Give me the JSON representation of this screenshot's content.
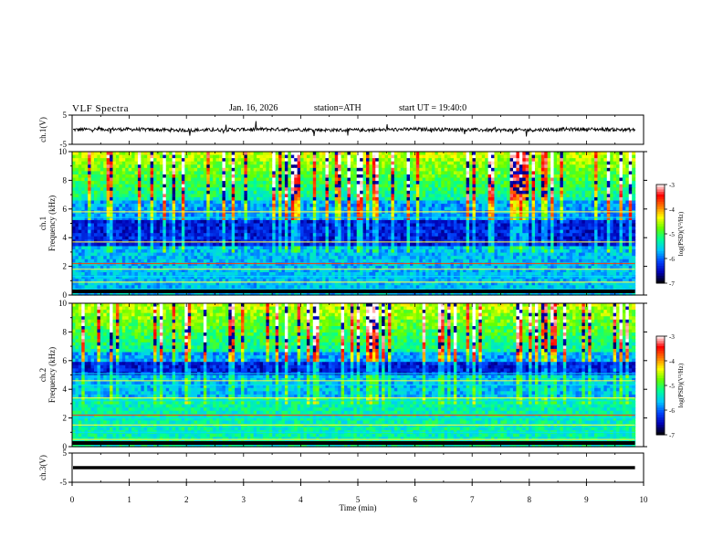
{
  "header": {
    "title": "VLF Spectra",
    "date": "Jan. 16, 2026",
    "station": "station=ATH",
    "start_ut": "start UT =  19:40:0"
  },
  "chart_data": [
    {
      "type": "line",
      "name": "ch1-waveform",
      "ylabel": "ch.1(V)",
      "ylim": [
        -5,
        5
      ],
      "yticks": [
        5,
        -5
      ],
      "xlim": [
        0,
        10
      ],
      "series": [
        {
          "name": "ch.1",
          "description": "noisy trace near 0 V with spikes",
          "baseline": 0,
          "noise_amp": 0.6,
          "spike_max": 2.5
        }
      ]
    },
    {
      "type": "heatmap",
      "name": "ch1-spectrogram",
      "ylabel": "ch.1",
      "ylabel2": "Frequency (kHz)",
      "xlim": [
        0,
        10
      ],
      "ylim": [
        0,
        10
      ],
      "yticks": [
        0,
        2,
        4,
        6,
        8,
        10
      ],
      "colorbar": {
        "label": "log(PSD)(V²/Hz)",
        "range": [
          -7,
          -3
        ],
        "ticks": [
          -3,
          -4,
          -5,
          -6,
          -7
        ]
      },
      "quiet_band_khz": [
        3.5,
        5.2
      ],
      "tone_lines_khz": [
        0.2,
        0.4,
        0.9,
        1.3,
        1.8,
        2.2,
        3.7,
        5.4,
        5.8
      ],
      "data_end_min": 9.85
    },
    {
      "type": "heatmap",
      "name": "ch2-spectrogram",
      "ylabel": "ch.2",
      "ylabel2": "Frequency (kHz)",
      "xlim": [
        0,
        10
      ],
      "ylim": [
        0,
        10
      ],
      "yticks": [
        0,
        2,
        4,
        6,
        8,
        10
      ],
      "colorbar": {
        "label": "log(PSD)(V²/Hz)",
        "range": [
          -7,
          -3
        ],
        "ticks": [
          -3,
          -4,
          -5,
          -6,
          -7
        ]
      },
      "quiet_band_khz": [
        5.0,
        6.0
      ],
      "tone_lines_khz": [
        0.5,
        1.0,
        1.5,
        2.0,
        2.2,
        3.2,
        3.4,
        4.3,
        4.6,
        5.1
      ],
      "data_end_min": 9.85
    },
    {
      "type": "line",
      "name": "ch3-waveform",
      "ylabel": "ch.3(V)",
      "ylim": [
        -5,
        5
      ],
      "yticks": [
        5,
        -5
      ],
      "xlim": [
        0,
        10
      ],
      "xlabel": "Time (min)",
      "xticks": [
        0,
        1,
        2,
        3,
        4,
        5,
        6,
        7,
        8,
        9,
        10
      ],
      "series": [
        {
          "name": "ch.3",
          "description": "flat thick trace at 0 V",
          "baseline": 0
        }
      ]
    }
  ],
  "colors": {
    "cmap": [
      "#000000",
      "#0000b4",
      "#0046ff",
      "#00c8ff",
      "#00ff96",
      "#64ff00",
      "#ffff00",
      "#ff7800",
      "#ff0000",
      "#ffffff"
    ],
    "axis": "#000000",
    "trace": "#000000"
  }
}
